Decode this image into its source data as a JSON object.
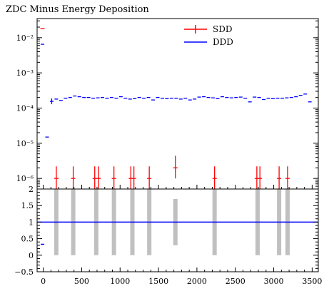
{
  "chart_data": {
    "title": "ZDC Minus Energy Deposition",
    "type": "scatter",
    "legend_placement": "top-right",
    "legend": [
      {
        "name": "SDD",
        "color": "#ff0000"
      },
      {
        "name": "DDD",
        "color": "#0000ff"
      }
    ],
    "x_axis": {
      "range": [
        -80,
        3580
      ],
      "ticks": [
        0,
        500,
        1000,
        1500,
        2000,
        2500,
        3000,
        3500
      ],
      "tick_labels": [
        "0",
        "500",
        "1000",
        "1500",
        "2000",
        "2500",
        "3000",
        "3500"
      ]
    },
    "top_panel": {
      "y_scale": "log",
      "y_range": [
        5e-07,
        0.035
      ],
      "y_ticks": [
        1e-06,
        1e-05,
        0.0001,
        0.001,
        0.01
      ],
      "y_tick_labels": [
        "10⁻⁶",
        "10⁻⁵",
        "10⁻⁴",
        "10⁻³",
        "10⁻²"
      ],
      "series": [
        {
          "name": "DDD",
          "color": "#0000ff",
          "x": [
            -10,
            50,
            110,
            170,
            230,
            290,
            350,
            410,
            470,
            530,
            590,
            650,
            710,
            770,
            830,
            890,
            950,
            1010,
            1070,
            1130,
            1190,
            1250,
            1310,
            1370,
            1430,
            1490,
            1550,
            1610,
            1670,
            1730,
            1790,
            1850,
            1910,
            1970,
            2030,
            2090,
            2150,
            2210,
            2270,
            2330,
            2390,
            2450,
            2510,
            2570,
            2630,
            2690,
            2750,
            2810,
            2870,
            2930,
            2990,
            3050,
            3110,
            3170,
            3230,
            3290,
            3350,
            3410,
            3470
          ],
          "y": [
            0.0065,
            1.5e-05,
            0.000155,
            0.00018,
            0.000165,
            0.00019,
            0.0002,
            0.00022,
            0.00021,
            0.0002,
            0.0002,
            0.00019,
            0.000195,
            0.0002,
            0.00019,
            0.0002,
            0.00019,
            0.00021,
            0.00019,
            0.00018,
            0.000185,
            0.0002,
            0.00019,
            0.0002,
            0.00017,
            0.0002,
            0.00019,
            0.000185,
            0.00019,
            0.00019,
            0.00018,
            0.00019,
            0.00017,
            0.00018,
            0.000205,
            0.00021,
            0.0002,
            0.000195,
            0.000185,
            0.00021,
            0.0002,
            0.000195,
            0.0002,
            0.000205,
            0.00019,
            0.00015,
            0.000205,
            0.0002,
            0.000175,
            0.00019,
            0.000185,
            0.00019,
            0.00019,
            0.000195,
            0.0002,
            0.00021,
            0.00023,
            0.00025,
            0.00015
          ],
          "error_bars_visible": [
            2
          ]
        },
        {
          "name": "SDD",
          "color": "#ff0000",
          "x": [
            -10,
            170,
            390,
            670,
            720,
            920,
            1140,
            1180,
            1380,
            1720,
            2230,
            2780,
            2820,
            3070,
            3180
          ],
          "y": [
            0.018,
            1e-06,
            1e-06,
            1e-06,
            1e-06,
            1e-06,
            1e-06,
            1e-06,
            1e-06,
            2e-06,
            1e-06,
            1e-06,
            1e-06,
            1e-06,
            1e-06
          ]
        }
      ]
    },
    "ratio_panel": {
      "y_range": [
        -0.5,
        2.0
      ],
      "y_ticks": [
        -0.5,
        0,
        0.5,
        1,
        1.5,
        2
      ],
      "y_tick_labels": [
        "−0.5",
        "0",
        "0.5",
        "1",
        "1.5",
        "2"
      ],
      "reference_line": 1,
      "reference_color": "#0000ff",
      "band_color": "#c0c0c0",
      "bands": [
        {
          "x": 170,
          "low": 0,
          "high": 2
        },
        {
          "x": 390,
          "low": 0,
          "high": 2
        },
        {
          "x": 690,
          "low": 0,
          "high": 2
        },
        {
          "x": 920,
          "low": 0,
          "high": 2
        },
        {
          "x": 1160,
          "low": 0,
          "high": 2
        },
        {
          "x": 1380,
          "low": 0,
          "high": 2
        },
        {
          "x": 1720,
          "low": 0.3,
          "high": 1.7
        },
        {
          "x": 2230,
          "low": 0,
          "high": 2
        },
        {
          "x": 2790,
          "low": 0,
          "high": 2
        },
        {
          "x": 3070,
          "low": 0,
          "high": 2
        },
        {
          "x": 3180,
          "low": 0,
          "high": 2
        }
      ],
      "markers": [
        {
          "x": -10,
          "y": 0.33,
          "color": "#0000ff"
        }
      ]
    }
  }
}
